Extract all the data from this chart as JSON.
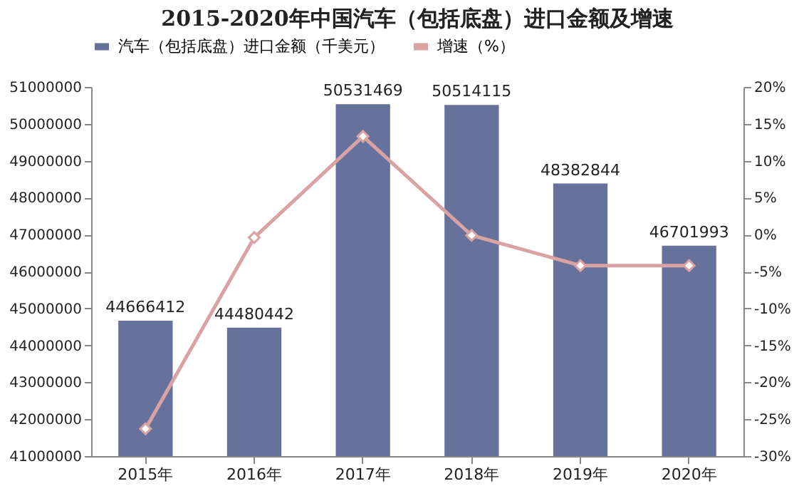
{
  "chart_data": {
    "type": "bar",
    "title": "2015-2020年中国汽车（包括底盘）进口金额及增速",
    "categories": [
      "2015年",
      "2016年",
      "2017年",
      "2018年",
      "2019年",
      "2020年"
    ],
    "series": [
      {
        "name": "汽车（包括底盘）进口金额（千美元）",
        "color": "#67729c",
        "values": [
          44666412,
          44480442,
          50531469,
          50514115,
          48382844,
          46701993
        ],
        "value_labels": [
          "44666412",
          "44480442",
          "50531469",
          "50514115",
          "48382844",
          "46701993"
        ]
      },
      {
        "name": "增速（%）",
        "type": "line",
        "axis": "y2",
        "color": "#d9a3a3",
        "marker": "diamond",
        "values": [
          -26.3,
          -0.4,
          13.3,
          -0.1,
          -4.2,
          -4.2
        ]
      }
    ],
    "ylim": [
      41000000,
      51000000
    ],
    "yticks": [
      41000000,
      42000000,
      43000000,
      44000000,
      45000000,
      46000000,
      47000000,
      48000000,
      49000000,
      50000000,
      51000000
    ],
    "y2lim": [
      -30,
      20
    ],
    "y2ticks": [
      {
        "value": -30,
        "label": "-30%"
      },
      {
        "value": -25,
        "label": "-25%"
      },
      {
        "value": -20,
        "label": "-20%"
      },
      {
        "value": -15,
        "label": "-15%"
      },
      {
        "value": -10,
        "label": "-10%"
      },
      {
        "value": -5,
        "label": "-5%"
      },
      {
        "value": 0,
        "label": "0%"
      },
      {
        "value": 5,
        "label": "5%"
      },
      {
        "value": 10,
        "label": "10%"
      },
      {
        "value": 15,
        "label": "15%"
      },
      {
        "value": 20,
        "label": "20%"
      }
    ],
    "grid": false,
    "legend": "top"
  }
}
